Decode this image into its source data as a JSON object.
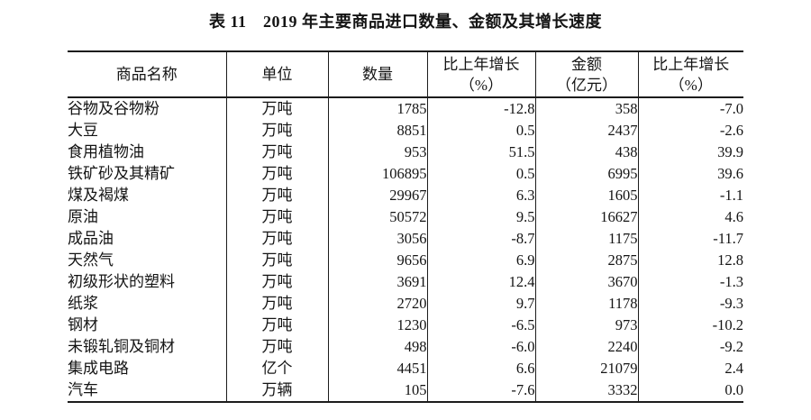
{
  "page": {
    "background": "#ffffff",
    "text_color": "#141414",
    "border_color": "#1c1c1c"
  },
  "title": "表 11　2019 年主要商品进口数量、金额及其增长速度",
  "table": {
    "headers": [
      "商品名称",
      "单位",
      "数量",
      "比上年增长\n（%）",
      "金额\n（亿元）",
      "比上年增长\n（%）"
    ],
    "rows": [
      {
        "name": "谷物及谷物粉",
        "unit": "万吨",
        "quantity": "1785",
        "quantity_growth": "-12.8",
        "amount": "358",
        "amount_growth": "-7.0"
      },
      {
        "name": "大豆",
        "unit": "万吨",
        "quantity": "8851",
        "quantity_growth": "0.5",
        "amount": "2437",
        "amount_growth": "-2.6"
      },
      {
        "name": "食用植物油",
        "unit": "万吨",
        "quantity": "953",
        "quantity_growth": "51.5",
        "amount": "438",
        "amount_growth": "39.9"
      },
      {
        "name": "铁矿砂及其精矿",
        "unit": "万吨",
        "quantity": "106895",
        "quantity_growth": "0.5",
        "amount": "6995",
        "amount_growth": "39.6"
      },
      {
        "name": "煤及褐煤",
        "unit": "万吨",
        "quantity": "29967",
        "quantity_growth": "6.3",
        "amount": "1605",
        "amount_growth": "-1.1"
      },
      {
        "name": "原油",
        "unit": "万吨",
        "quantity": "50572",
        "quantity_growth": "9.5",
        "amount": "16627",
        "amount_growth": "4.6"
      },
      {
        "name": "成品油",
        "unit": "万吨",
        "quantity": "3056",
        "quantity_growth": "-8.7",
        "amount": "1175",
        "amount_growth": "-11.7"
      },
      {
        "name": "天然气",
        "unit": "万吨",
        "quantity": "9656",
        "quantity_growth": "6.9",
        "amount": "2875",
        "amount_growth": "12.8"
      },
      {
        "name": "初级形状的塑料",
        "unit": "万吨",
        "quantity": "3691",
        "quantity_growth": "12.4",
        "amount": "3670",
        "amount_growth": "-1.3"
      },
      {
        "name": "纸浆",
        "unit": "万吨",
        "quantity": "2720",
        "quantity_growth": "9.7",
        "amount": "1178",
        "amount_growth": "-9.3"
      },
      {
        "name": "钢材",
        "unit": "万吨",
        "quantity": "1230",
        "quantity_growth": "-6.5",
        "amount": "973",
        "amount_growth": "-10.2"
      },
      {
        "name": "未锻轧铜及铜材",
        "unit": "万吨",
        "quantity": "498",
        "quantity_growth": "-6.0",
        "amount": "2240",
        "amount_growth": "-9.2"
      },
      {
        "name": "集成电路",
        "unit": "亿个",
        "quantity": "4451",
        "quantity_growth": "6.6",
        "amount": "21079",
        "amount_growth": "2.4"
      },
      {
        "name": "汽车",
        "unit": "万辆",
        "quantity": "105",
        "quantity_growth": "-7.6",
        "amount": "3332",
        "amount_growth": "0.0"
      }
    ]
  }
}
